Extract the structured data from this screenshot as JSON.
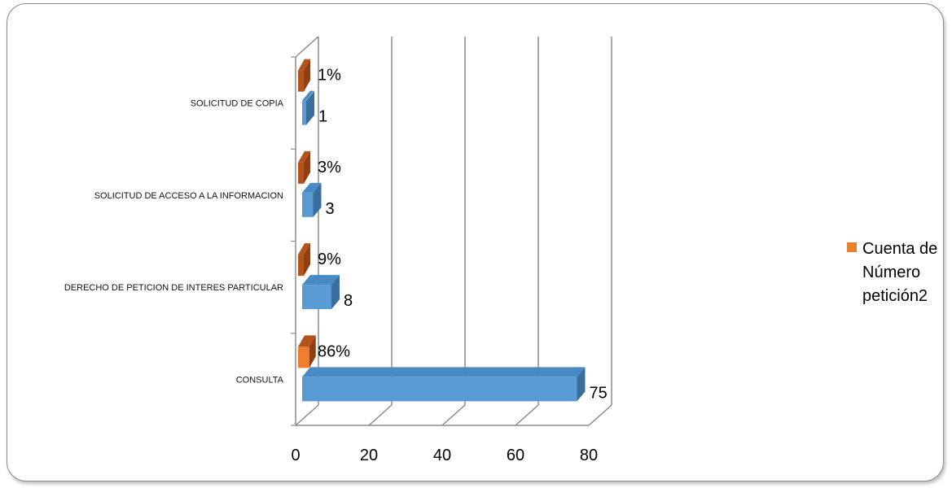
{
  "colors": {
    "bar_front": "#5b9bd5",
    "bar_top": "#4a8ac4",
    "bar_side": "#3a6e9e",
    "pct_front": "#ed7d31",
    "pct_dark": "#b4531c",
    "pct_side": "#8f3f12",
    "grid": "#8c8c8c",
    "legend_swatch": "#ed7d31"
  },
  "legend": {
    "label": "Cuenta de Número petición2"
  },
  "chart_data": {
    "type": "bar",
    "orientation": "horizontal",
    "is_3d": true,
    "categories": [
      "SOLICITUD DE COPIA",
      "SOLICITUD DE ACCESO A LA INFORMACION",
      "DERECHO DE PETICION DE INTERES PARTICULAR",
      "CONSULTA"
    ],
    "series": [
      {
        "name": "Cuenta de Número petición2",
        "values": [
          1,
          3,
          8,
          75
        ],
        "value_labels": [
          "1",
          "3",
          "8",
          "75"
        ]
      },
      {
        "name": "",
        "values": [
          1,
          3,
          9,
          86
        ],
        "value_labels": [
          "1%",
          "3%",
          "9%",
          "86%"
        ],
        "unit": "%"
      }
    ],
    "xlim": [
      0,
      80
    ],
    "xticks": [
      "0",
      "20",
      "40",
      "60",
      "80"
    ],
    "grid": true,
    "legend_position": "right"
  }
}
